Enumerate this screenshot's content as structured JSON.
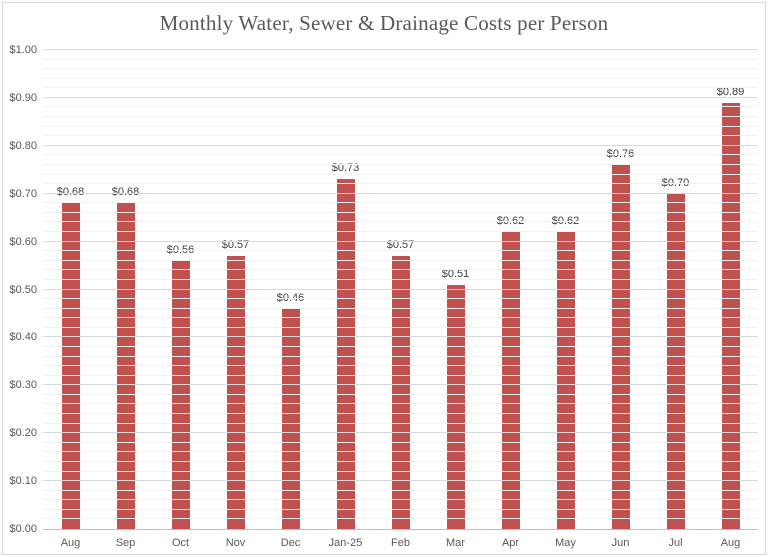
{
  "title": "Monthly Water, Sewer & Drainage Costs per Person",
  "colors": {
    "bar": "#c0514e",
    "major_gridline": "#d9d9d9",
    "minor_gridline": "#f2f2f2",
    "axis_line": "#bfbfbf",
    "title_text": "#595959",
    "axis_text": "#595959",
    "data_label_text": "#404040",
    "frame_border": "#d9d9d9",
    "background": "#ffffff"
  },
  "chart_data": {
    "type": "bar",
    "title": "Monthly Water, Sewer & Drainage Costs per Person",
    "categories": [
      "Aug",
      "Sep",
      "Oct",
      "Nov",
      "Dec",
      "Jan-25",
      "Feb",
      "Mar",
      "Apr",
      "May",
      "Jun",
      "Jul",
      "Aug"
    ],
    "values": [
      0.68,
      0.68,
      0.56,
      0.57,
      0.46,
      0.73,
      0.57,
      0.51,
      0.62,
      0.62,
      0.76,
      0.7,
      0.89
    ],
    "data_labels": [
      "$0.68",
      "$0.68",
      "$0.56",
      "$0.57",
      "$0.46",
      "$0.73",
      "$0.57",
      "$0.51",
      "$0.62",
      "$0.62",
      "$0.76",
      "$0.70",
      "$0.89"
    ],
    "xlabel": "",
    "ylabel": "",
    "ylim": [
      0,
      1.0
    ],
    "y_major_unit": 0.1,
    "y_minor_unit": 0.02,
    "y_tick_labels": [
      "$0.00",
      "$0.10",
      "$0.20",
      "$0.30",
      "$0.40",
      "$0.50",
      "$0.60",
      "$0.70",
      "$0.80",
      "$0.90",
      "$1.00"
    ],
    "grid": true,
    "legend_position": "none",
    "data_labels_shown": true
  }
}
